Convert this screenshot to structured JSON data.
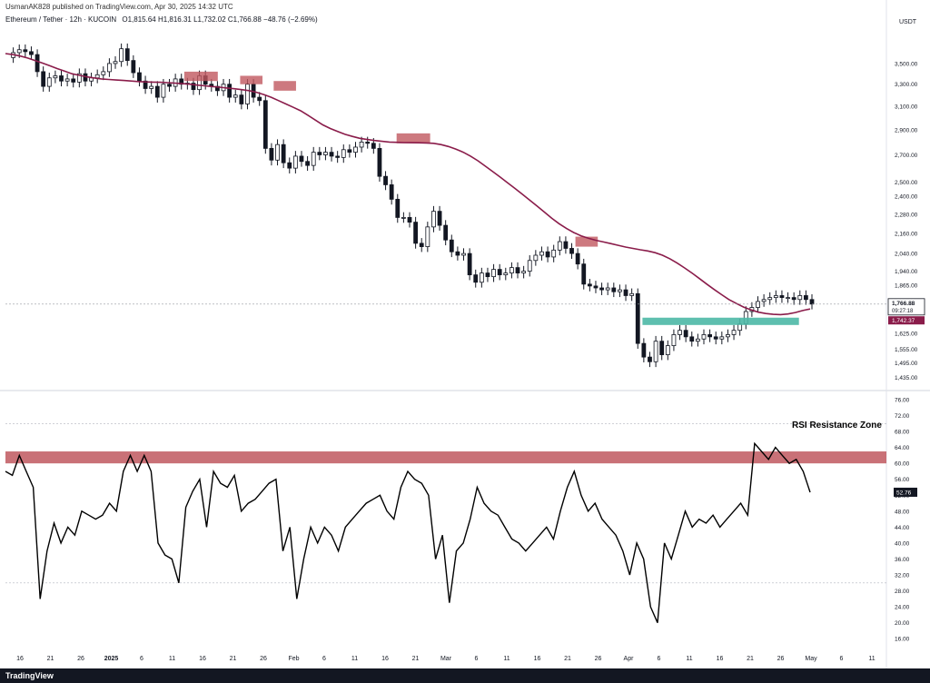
{
  "header": {
    "publisher": "UsmanAK828 published on TradingView.com, Apr 30, 2025 14:32 UTC"
  },
  "legend": {
    "symbol": "Ethereum / Tether · 12h · KUCOIN",
    "ohlc": "O1,815.64 H1,816.31 L1,732.02 C1,766.88 −48.76 (−2.69%)"
  },
  "footer": {
    "logo": "TradingView"
  },
  "colors": {
    "candle": "#131722",
    "ma": "#8a1c4a",
    "resistance_box": "#c0585f",
    "support_box": "#4cb8a6",
    "rsi_line": "#000000"
  },
  "chart_data": [
    {
      "type": "candlestick",
      "title": "",
      "price_axis_currency": "USDT",
      "y_scale": "log",
      "ylim": [
        1400,
        3900
      ],
      "y_ticks": [
        "3,500.00",
        "3,300.00",
        "3,100.00",
        "2,900.00",
        "2,700.00",
        "2,500.00",
        "2,400.00",
        "2,280.00",
        "2,160.00",
        "2,040.00",
        "1,940.00",
        "1,865.00",
        "1,625.00",
        "1,555.00",
        "1,495.00",
        "1,435.00"
      ],
      "x_ticks": [
        "16",
        "21",
        "26",
        "2025",
        "6",
        "11",
        "16",
        "21",
        "26",
        "Feb",
        "6",
        "11",
        "16",
        "21",
        "Mar",
        "6",
        "11",
        "16",
        "21",
        "26",
        "Apr",
        "6",
        "11",
        "16",
        "21",
        "26",
        "May",
        "6",
        "11"
      ],
      "current_price": "1,766.88",
      "countdown": "09:27:18",
      "ma_value_label": "1,742.37",
      "close_series": [
        3560,
        3610,
        3640,
        3620,
        3590,
        3420,
        3280,
        3360,
        3380,
        3330,
        3350,
        3320,
        3400,
        3330,
        3360,
        3390,
        3420,
        3500,
        3520,
        3650,
        3530,
        3410,
        3330,
        3260,
        3280,
        3180,
        3300,
        3280,
        3350,
        3300,
        3310,
        3250,
        3380,
        3300,
        3280,
        3240,
        3300,
        3180,
        3200,
        3120,
        3300,
        3180,
        3150,
        2750,
        2660,
        2780,
        2640,
        2600,
        2690,
        2650,
        2620,
        2720,
        2700,
        2720,
        2690,
        2680,
        2740,
        2720,
        2760,
        2800,
        2790,
        2750,
        2540,
        2480,
        2380,
        2260,
        2260,
        2230,
        2100,
        2080,
        2200,
        2300,
        2210,
        2120,
        2050,
        2030,
        2040,
        1920,
        1880,
        1930,
        1910,
        1950,
        1920,
        1930,
        1960,
        1930,
        1940,
        2000,
        2030,
        2050,
        2020,
        2060,
        2110,
        2070,
        2040,
        1980,
        1870,
        1860,
        1850,
        1840,
        1850,
        1830,
        1840,
        1810,
        1820,
        1580,
        1520,
        1500,
        1590,
        1530,
        1570,
        1620,
        1640,
        1610,
        1590,
        1600,
        1620,
        1610,
        1600,
        1610,
        1620,
        1640,
        1670,
        1730,
        1750,
        1780,
        1790,
        1800,
        1810,
        1800,
        1800,
        1790,
        1810,
        1790,
        1766.88
      ],
      "ma_series": [
        3600,
        3590,
        3575,
        3555,
        3530,
        3505,
        3478,
        3450,
        3425,
        3400,
        3385,
        3370,
        3360,
        3350,
        3345,
        3340,
        3335,
        3330,
        3325,
        3322,
        3320,
        3318,
        3315,
        3310,
        3305,
        3300,
        3292,
        3285,
        3278,
        3272,
        3265,
        3258,
        3250,
        3240,
        3225,
        3205,
        3180,
        3150,
        3120,
        3090,
        3060,
        3020,
        2980,
        2940,
        2910,
        2885,
        2862,
        2845,
        2830,
        2820,
        2812,
        2806,
        2800,
        2798,
        2796,
        2795,
        2794,
        2793,
        2790,
        2780,
        2765,
        2745,
        2720,
        2690,
        2655,
        2615,
        2575,
        2535,
        2495,
        2455,
        2415,
        2375,
        2335,
        2295,
        2255,
        2220,
        2190,
        2165,
        2145,
        2130,
        2118,
        2108,
        2098,
        2088,
        2078,
        2070,
        2062,
        2055,
        2045,
        2030,
        2010,
        1985,
        1958,
        1930,
        1900,
        1870,
        1842,
        1815,
        1790,
        1770,
        1752,
        1738,
        1727,
        1720,
        1716,
        1715,
        1718,
        1725,
        1735,
        1742.37
      ],
      "annotations": [
        {
          "kind": "resistance-box",
          "x_start": 16,
          "x_end": 19,
          "y_high": 3420,
          "y_low": 3330
        },
        {
          "kind": "resistance-box",
          "x_start": 21,
          "x_end": 23,
          "y_high": 3380,
          "y_low": 3300
        },
        {
          "kind": "resistance-box",
          "x_start": 24,
          "x_end": 26,
          "y_high": 3330,
          "y_low": 3240
        },
        {
          "kind": "resistance-box",
          "x_start": 35,
          "x_end": 38,
          "y_high": 2870,
          "y_low": 2790
        },
        {
          "kind": "resistance-box",
          "x_start": 51,
          "x_end": 53,
          "y_high": 2140,
          "y_low": 2080
        },
        {
          "kind": "support-box",
          "x_start": 57,
          "x_end": 71,
          "y_high": 1700,
          "y_low": 1665
        }
      ]
    },
    {
      "type": "line",
      "title": "RSI",
      "annotation_label": "RSI Resistance Zone",
      "ylim": [
        14,
        76
      ],
      "y_ticks": [
        "76.00",
        "72.00",
        "68.00",
        "64.00",
        "60.00",
        "56.00",
        "52.00",
        "48.00",
        "44.00",
        "40.00",
        "36.00",
        "32.00",
        "28.00",
        "24.00",
        "20.00",
        "16.00"
      ],
      "resistance_zone": [
        60,
        63
      ],
      "dashed_levels": [
        70,
        30
      ],
      "current_value": "52.76",
      "values": [
        58,
        57,
        62,
        58,
        54,
        26,
        38,
        45,
        40,
        44,
        42,
        48,
        47,
        46,
        47,
        50,
        48,
        58,
        62,
        58,
        62,
        58,
        40,
        37,
        36,
        30,
        49,
        53,
        56,
        44,
        58,
        55,
        54,
        57,
        48,
        50,
        51,
        53,
        55,
        56,
        38,
        44,
        26,
        36,
        44,
        40,
        44,
        42,
        38,
        44,
        46,
        48,
        50,
        51,
        52,
        48,
        46,
        54,
        58,
        56,
        55,
        52,
        36,
        42,
        25,
        38,
        40,
        46,
        54,
        50,
        48,
        47,
        44,
        41,
        40,
        38,
        40,
        42,
        44,
        41,
        48,
        54,
        58,
        52,
        48,
        50,
        46,
        44,
        42,
        38,
        32,
        40,
        36,
        24,
        20,
        40,
        36,
        42,
        48,
        44,
        46,
        45,
        47,
        44,
        46,
        48,
        50,
        47,
        65,
        63,
        61,
        64,
        62,
        60,
        61,
        58,
        52.76
      ]
    }
  ]
}
